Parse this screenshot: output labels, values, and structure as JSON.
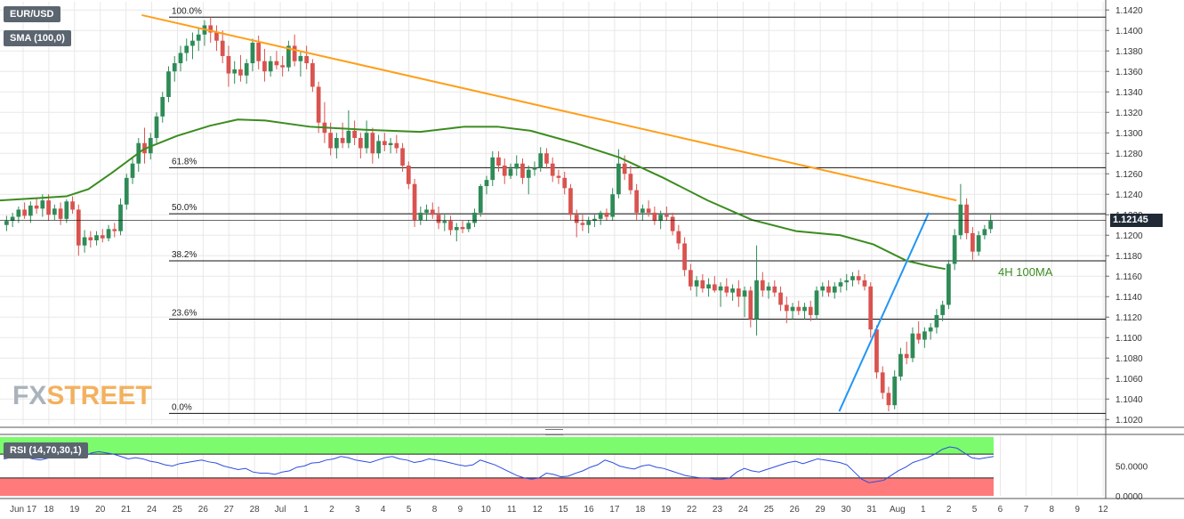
{
  "instrument": "EUR/USD",
  "indicator_label": "SMA (100,0)",
  "rsi_label": "RSI (14,70,30,1)",
  "current_price": "1.12145",
  "logo": {
    "fx": "FX",
    "street": "STREET"
  },
  "annotations": {
    "ma": "4H 100MA"
  },
  "colors": {
    "bull": "#2e8b57",
    "bear": "#d9534f",
    "trend_top": "#ff9f1c",
    "trend_support": "#2196f3",
    "sma": "#3b8c1f",
    "rsi_line": "#2c4de0",
    "rsi_over": "#7cfc6c",
    "rsi_under": "#ff7b7b",
    "grid": "#e8e8e8"
  },
  "chart_data": {
    "type": "candlestick",
    "title": "EUR/USD",
    "ylim": [
      1.1015,
      1.1428
    ],
    "yticks": [
      "1.1020",
      "1.1040",
      "1.1060",
      "1.1080",
      "1.1100",
      "1.1120",
      "1.1140",
      "1.1160",
      "1.1180",
      "1.1200",
      "1.1220",
      "1.1240",
      "1.1260",
      "1.1280",
      "1.1300",
      "1.1320",
      "1.1340",
      "1.1360",
      "1.1380",
      "1.1400",
      "1.1420"
    ],
    "xlabels": [
      "Jun 17",
      "18",
      "19",
      "20",
      "21",
      "24",
      "25",
      "26",
      "27",
      "28",
      "Jul",
      "1",
      "2",
      "3",
      "4",
      "5",
      "8",
      "9",
      "10",
      "11",
      "12",
      "15",
      "16",
      "17",
      "18",
      "19",
      "22",
      "23",
      "24",
      "25",
      "26",
      "29",
      "30",
      "31",
      "Aug",
      "1",
      "2",
      "5",
      "6",
      "7",
      "8",
      "9",
      "12"
    ],
    "fibonacci": [
      {
        "label": "100.0%",
        "value": 1.1413
      },
      {
        "label": "61.8%",
        "value": 1.1266
      },
      {
        "label": "50.0%",
        "value": 1.1221
      },
      {
        "label": "38.2%",
        "value": 1.1175
      },
      {
        "label": "23.6%",
        "value": 1.1118
      },
      {
        "label": "0.0%",
        "value": 1.1026
      }
    ],
    "resistance_line": {
      "from": [
        0.1282,
        1.1415
      ],
      "to": [
        0.865,
        1.1234
      ]
    },
    "support_line": {
      "from": [
        0.759,
        1.1028
      ],
      "to": [
        0.84,
        1.1222
      ]
    },
    "sma_100": [
      [
        0.0,
        1.1234
      ],
      [
        0.03,
        1.1236
      ],
      [
        0.06,
        1.1238
      ],
      [
        0.08,
        1.1245
      ],
      [
        0.1,
        1.126
      ],
      [
        0.13,
        1.1284
      ],
      [
        0.16,
        1.1297
      ],
      [
        0.19,
        1.1307
      ],
      [
        0.215,
        1.1313
      ],
      [
        0.24,
        1.1312
      ],
      [
        0.28,
        1.1306
      ],
      [
        0.33,
        1.1303
      ],
      [
        0.38,
        1.1301
      ],
      [
        0.42,
        1.1306
      ],
      [
        0.45,
        1.1306
      ],
      [
        0.48,
        1.1302
      ],
      [
        0.52,
        1.129
      ],
      [
        0.56,
        1.1276
      ],
      [
        0.6,
        1.1256
      ],
      [
        0.64,
        1.1234
      ],
      [
        0.68,
        1.1215
      ],
      [
        0.72,
        1.1204
      ],
      [
        0.76,
        1.12
      ],
      [
        0.79,
        1.1191
      ],
      [
        0.82,
        1.1175
      ],
      [
        0.84,
        1.117
      ],
      [
        0.855,
        1.1167
      ]
    ],
    "candles_ohlc": [
      [
        1.121,
        1.1219,
        1.1204,
        1.1214
      ],
      [
        1.1214,
        1.1222,
        1.1208,
        1.1218
      ],
      [
        1.1218,
        1.1228,
        1.1212,
        1.1225
      ],
      [
        1.1225,
        1.1232,
        1.1216,
        1.1219
      ],
      [
        1.1219,
        1.1233,
        1.1212,
        1.1229
      ],
      [
        1.1229,
        1.1237,
        1.1221,
        1.1226
      ],
      [
        1.1226,
        1.124,
        1.1218,
        1.1234
      ],
      [
        1.1234,
        1.124,
        1.1214,
        1.122
      ],
      [
        1.122,
        1.123,
        1.1215,
        1.1226
      ],
      [
        1.1226,
        1.1232,
        1.121,
        1.1216
      ],
      [
        1.1216,
        1.1235,
        1.1212,
        1.1233
      ],
      [
        1.1233,
        1.1238,
        1.1221,
        1.1225
      ],
      [
        1.1225,
        1.123,
        1.118,
        1.119
      ],
      [
        1.119,
        1.1205,
        1.1183,
        1.1198
      ],
      [
        1.1198,
        1.1204,
        1.1188,
        1.1195
      ],
      [
        1.1195,
        1.1204,
        1.119,
        1.12
      ],
      [
        1.12,
        1.1206,
        1.1193,
        1.1197
      ],
      [
        1.1197,
        1.121,
        1.1194,
        1.1206
      ],
      [
        1.1206,
        1.1212,
        1.1198,
        1.1204
      ],
      [
        1.1204,
        1.1236,
        1.12,
        1.123
      ],
      [
        1.123,
        1.126,
        1.1225,
        1.1256
      ],
      [
        1.1256,
        1.1275,
        1.125,
        1.127
      ],
      [
        1.127,
        1.1295,
        1.1262,
        1.129
      ],
      [
        1.129,
        1.1305,
        1.127,
        1.128
      ],
      [
        1.128,
        1.13,
        1.1274,
        1.1295
      ],
      [
        1.1295,
        1.132,
        1.129,
        1.1316
      ],
      [
        1.1316,
        1.134,
        1.131,
        1.1335
      ],
      [
        1.1335,
        1.1365,
        1.133,
        1.136
      ],
      [
        1.136,
        1.1375,
        1.135,
        1.1368
      ],
      [
        1.1368,
        1.1385,
        1.136,
        1.1378
      ],
      [
        1.1378,
        1.1392,
        1.137,
        1.1385
      ],
      [
        1.1385,
        1.1398,
        1.1372,
        1.139
      ],
      [
        1.139,
        1.1402,
        1.138,
        1.1396
      ],
      [
        1.1396,
        1.141,
        1.1385,
        1.1405
      ],
      [
        1.1405,
        1.1413,
        1.1388,
        1.1398
      ],
      [
        1.1398,
        1.1405,
        1.138,
        1.139
      ],
      [
        1.139,
        1.14,
        1.1368,
        1.1375
      ],
      [
        1.1375,
        1.1385,
        1.1345,
        1.1358
      ],
      [
        1.1358,
        1.137,
        1.1348,
        1.1362
      ],
      [
        1.1362,
        1.1376,
        1.135,
        1.1356
      ],
      [
        1.1356,
        1.1372,
        1.1348,
        1.1368
      ],
      [
        1.1368,
        1.1392,
        1.136,
        1.1388
      ],
      [
        1.1388,
        1.1395,
        1.1362,
        1.137
      ],
      [
        1.137,
        1.1382,
        1.135,
        1.136
      ],
      [
        1.136,
        1.1375,
        1.1355,
        1.137
      ],
      [
        1.137,
        1.138,
        1.1362,
        1.1366
      ],
      [
        1.1366,
        1.1375,
        1.1355,
        1.1364
      ],
      [
        1.1364,
        1.139,
        1.136,
        1.1385
      ],
      [
        1.1385,
        1.1396,
        1.1365,
        1.137
      ],
      [
        1.137,
        1.138,
        1.1355,
        1.1375
      ],
      [
        1.1375,
        1.1385,
        1.1362,
        1.1368
      ],
      [
        1.1368,
        1.1372,
        1.134,
        1.1345
      ],
      [
        1.1345,
        1.135,
        1.13,
        1.131
      ],
      [
        1.131,
        1.133,
        1.129,
        1.13
      ],
      [
        1.13,
        1.131,
        1.1278,
        1.1285
      ],
      [
        1.1285,
        1.13,
        1.1275,
        1.1295
      ],
      [
        1.1295,
        1.131,
        1.1285,
        1.129
      ],
      [
        1.129,
        1.1322,
        1.1285,
        1.1302
      ],
      [
        1.1302,
        1.1312,
        1.1288,
        1.1295
      ],
      [
        1.1295,
        1.13,
        1.1275,
        1.1285
      ],
      [
        1.1285,
        1.1312,
        1.128,
        1.13
      ],
      [
        1.13,
        1.1305,
        1.127,
        1.128
      ],
      [
        1.128,
        1.1298,
        1.1275,
        1.1292
      ],
      [
        1.1292,
        1.13,
        1.1282,
        1.1288
      ],
      [
        1.1288,
        1.1295,
        1.128,
        1.129
      ],
      [
        1.129,
        1.1298,
        1.128,
        1.1285
      ],
      [
        1.1285,
        1.129,
        1.1262,
        1.1268
      ],
      [
        1.1268,
        1.1272,
        1.1245,
        1.125
      ],
      [
        1.125,
        1.1255,
        1.1208,
        1.1215
      ],
      [
        1.1215,
        1.1228,
        1.121,
        1.1222
      ],
      [
        1.1222,
        1.123,
        1.1214,
        1.1225
      ],
      [
        1.1225,
        1.1232,
        1.1216,
        1.122
      ],
      [
        1.122,
        1.1228,
        1.1206,
        1.1212
      ],
      [
        1.1212,
        1.122,
        1.1204,
        1.1214
      ],
      [
        1.1214,
        1.1219,
        1.12,
        1.1205
      ],
      [
        1.1205,
        1.1212,
        1.1194,
        1.1208
      ],
      [
        1.1208,
        1.1214,
        1.1202,
        1.1206
      ],
      [
        1.1206,
        1.1215,
        1.1203,
        1.1212
      ],
      [
        1.1212,
        1.1226,
        1.1208,
        1.1222
      ],
      [
        1.1222,
        1.125,
        1.1218,
        1.1248
      ],
      [
        1.1248,
        1.1258,
        1.124,
        1.1254
      ],
      [
        1.1254,
        1.1282,
        1.1248,
        1.1276
      ],
      [
        1.1276,
        1.1282,
        1.1262,
        1.1268
      ],
      [
        1.1268,
        1.1275,
        1.125,
        1.1258
      ],
      [
        1.1258,
        1.127,
        1.1255,
        1.1265
      ],
      [
        1.1265,
        1.1278,
        1.1258,
        1.127
      ],
      [
        1.127,
        1.1275,
        1.125,
        1.1256
      ],
      [
        1.1256,
        1.1268,
        1.124,
        1.1264
      ],
      [
        1.1264,
        1.1272,
        1.1258,
        1.1266
      ],
      [
        1.1266,
        1.1286,
        1.1262,
        1.128
      ],
      [
        1.128,
        1.1285,
        1.1265,
        1.127
      ],
      [
        1.127,
        1.1276,
        1.1252,
        1.1258
      ],
      [
        1.1258,
        1.1264,
        1.125,
        1.1256
      ],
      [
        1.1256,
        1.1262,
        1.124,
        1.1246
      ],
      [
        1.1246,
        1.125,
        1.1215,
        1.122
      ],
      [
        1.122,
        1.1225,
        1.1198,
        1.1212
      ],
      [
        1.1212,
        1.122,
        1.1204,
        1.121
      ],
      [
        1.121,
        1.1218,
        1.1202,
        1.1214
      ],
      [
        1.1214,
        1.122,
        1.1208,
        1.1216
      ],
      [
        1.1216,
        1.1224,
        1.121,
        1.1222
      ],
      [
        1.1222,
        1.1226,
        1.1214,
        1.1218
      ],
      [
        1.1218,
        1.1246,
        1.1214,
        1.124
      ],
      [
        1.124,
        1.1284,
        1.1236,
        1.127
      ],
      [
        1.127,
        1.1278,
        1.1254,
        1.126
      ],
      [
        1.126,
        1.1268,
        1.124,
        1.1244
      ],
      [
        1.1244,
        1.125,
        1.1215,
        1.1222
      ],
      [
        1.1222,
        1.123,
        1.1214,
        1.1226
      ],
      [
        1.1226,
        1.1234,
        1.1218,
        1.1222
      ],
      [
        1.1222,
        1.1228,
        1.121,
        1.1214
      ],
      [
        1.1214,
        1.1224,
        1.1206,
        1.122
      ],
      [
        1.122,
        1.1228,
        1.1214,
        1.1218
      ],
      [
        1.1218,
        1.1222,
        1.12,
        1.1204
      ],
      [
        1.1204,
        1.121,
        1.1186,
        1.1192
      ],
      [
        1.1192,
        1.1198,
        1.116,
        1.1166
      ],
      [
        1.1166,
        1.1172,
        1.1146,
        1.115
      ],
      [
        1.115,
        1.116,
        1.114,
        1.1156
      ],
      [
        1.1156,
        1.1162,
        1.1144,
        1.1148
      ],
      [
        1.1148,
        1.1158,
        1.114,
        1.1152
      ],
      [
        1.1152,
        1.116,
        1.1144,
        1.1146
      ],
      [
        1.1146,
        1.1154,
        1.113,
        1.115
      ],
      [
        1.115,
        1.1158,
        1.114,
        1.1144
      ],
      [
        1.1144,
        1.1152,
        1.1136,
        1.1148
      ],
      [
        1.1148,
        1.1156,
        1.113,
        1.114
      ],
      [
        1.114,
        1.115,
        1.112,
        1.1146
      ],
      [
        1.1146,
        1.115,
        1.111,
        1.1118
      ],
      [
        1.1118,
        1.119,
        1.1102,
        1.1156
      ],
      [
        1.1156,
        1.1164,
        1.114,
        1.1146
      ],
      [
        1.1146,
        1.1154,
        1.1138,
        1.115
      ],
      [
        1.115,
        1.1156,
        1.114,
        1.1144
      ],
      [
        1.1144,
        1.115,
        1.1126,
        1.1132
      ],
      [
        1.1132,
        1.114,
        1.1114,
        1.1126
      ],
      [
        1.1126,
        1.1134,
        1.1118,
        1.113
      ],
      [
        1.113,
        1.1136,
        1.1122,
        1.1126
      ],
      [
        1.1126,
        1.1134,
        1.1118,
        1.113
      ],
      [
        1.113,
        1.1136,
        1.1116,
        1.1122
      ],
      [
        1.1122,
        1.115,
        1.1118,
        1.1146
      ],
      [
        1.1146,
        1.1154,
        1.114,
        1.115
      ],
      [
        1.115,
        1.1156,
        1.114,
        1.1144
      ],
      [
        1.1144,
        1.1154,
        1.1138,
        1.115
      ],
      [
        1.115,
        1.1158,
        1.1144,
        1.1154
      ],
      [
        1.1154,
        1.1162,
        1.1146,
        1.1156
      ],
      [
        1.1156,
        1.1164,
        1.115,
        1.116
      ],
      [
        1.116,
        1.1166,
        1.1152,
        1.1156
      ],
      [
        1.1156,
        1.1162,
        1.1146,
        1.115
      ],
      [
        1.115,
        1.1154,
        1.11,
        1.1108
      ],
      [
        1.1108,
        1.1112,
        1.106,
        1.1066
      ],
      [
        1.1066,
        1.1072,
        1.104,
        1.1046
      ],
      [
        1.1046,
        1.1052,
        1.1028,
        1.1034
      ],
      [
        1.1034,
        1.1068,
        1.103,
        1.1062
      ],
      [
        1.1062,
        1.109,
        1.1058,
        1.1084
      ],
      [
        1.1084,
        1.1096,
        1.1074,
        1.108
      ],
      [
        1.108,
        1.111,
        1.1076,
        1.1104
      ],
      [
        1.1104,
        1.1116,
        1.1094,
        1.1098
      ],
      [
        1.1098,
        1.111,
        1.109,
        1.1106
      ],
      [
        1.1106,
        1.1114,
        1.1098,
        1.111
      ],
      [
        1.111,
        1.1128,
        1.1104,
        1.1122
      ],
      [
        1.1122,
        1.1136,
        1.1116,
        1.1132
      ],
      [
        1.1132,
        1.1176,
        1.1128,
        1.1172
      ],
      [
        1.1172,
        1.1206,
        1.1166,
        1.12
      ],
      [
        1.12,
        1.125,
        1.1196,
        1.123
      ],
      [
        1.123,
        1.1236,
        1.1196,
        1.1202
      ],
      [
        1.1202,
        1.1208,
        1.1176,
        1.1184
      ],
      [
        1.1184,
        1.1204,
        1.118,
        1.12
      ],
      [
        1.12,
        1.121,
        1.1196,
        1.1206
      ],
      [
        1.1206,
        1.122,
        1.1202,
        1.1214
      ]
    ],
    "rsi": {
      "levels": {
        "overbought": 70,
        "oversold": 30
      },
      "yticks": [
        "50.0000",
        "0.0000"
      ],
      "values": [
        62,
        64,
        66,
        65,
        62,
        60,
        63,
        70,
        72,
        70,
        68,
        66,
        72,
        74,
        72,
        70,
        66,
        62,
        64,
        62,
        58,
        56,
        52,
        50,
        54,
        56,
        58,
        60,
        57,
        55,
        50,
        47,
        44,
        46,
        40,
        38,
        38,
        36,
        40,
        42,
        48,
        50,
        55,
        56,
        60,
        62,
        66,
        64,
        60,
        58,
        56,
        60,
        64,
        66,
        62,
        60,
        56,
        58,
        62,
        60,
        58,
        55,
        52,
        50,
        52,
        60,
        56,
        52,
        46,
        40,
        34,
        30,
        28,
        30,
        38,
        36,
        32,
        33,
        38,
        42,
        48,
        52,
        60,
        56,
        50,
        47,
        45,
        50,
        52,
        48,
        46,
        42,
        38,
        34,
        32,
        30,
        30,
        28,
        28,
        30,
        40,
        46,
        42,
        40,
        44,
        48,
        52,
        56,
        58,
        54,
        58,
        62,
        60,
        58,
        56,
        52,
        40,
        28,
        22,
        24,
        26,
        34,
        42,
        48,
        56,
        60,
        64,
        70,
        78,
        82,
        80,
        72,
        64,
        62,
        64,
        66
      ]
    }
  }
}
